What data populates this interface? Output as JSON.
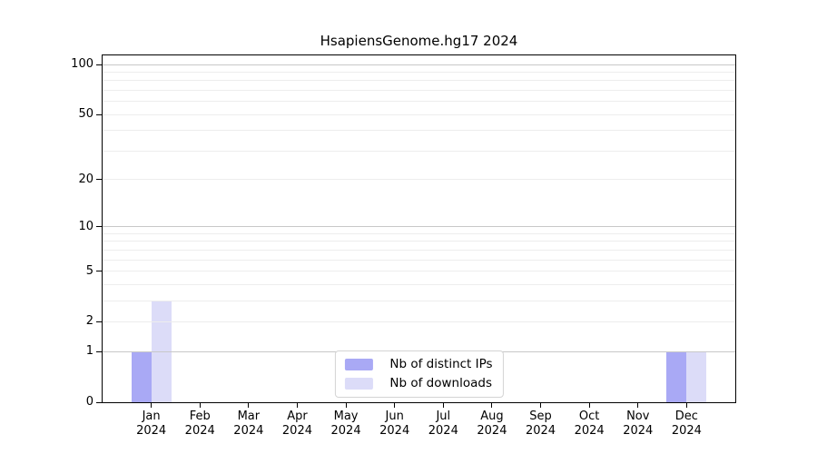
{
  "chart_data": {
    "type": "bar",
    "title": "HsapiensGenome.hg17 2024",
    "x_labels": [
      {
        "month": "Jan",
        "year": "2024"
      },
      {
        "month": "Feb",
        "year": "2024"
      },
      {
        "month": "Mar",
        "year": "2024"
      },
      {
        "month": "Apr",
        "year": "2024"
      },
      {
        "month": "May",
        "year": "2024"
      },
      {
        "month": "Jun",
        "year": "2024"
      },
      {
        "month": "Jul",
        "year": "2024"
      },
      {
        "month": "Aug",
        "year": "2024"
      },
      {
        "month": "Sep",
        "year": "2024"
      },
      {
        "month": "Oct",
        "year": "2024"
      },
      {
        "month": "Nov",
        "year": "2024"
      },
      {
        "month": "Dec",
        "year": "2024"
      }
    ],
    "series": [
      {
        "name": "Nb of distinct IPs",
        "color": "#a9a9f5",
        "values": [
          1,
          0,
          0,
          0,
          0,
          0,
          0,
          0,
          0,
          0,
          0,
          1
        ]
      },
      {
        "name": "Nb of downloads",
        "color": "#dcdcf8",
        "values": [
          3,
          0,
          0,
          0,
          0,
          0,
          0,
          0,
          0,
          0,
          0,
          1
        ]
      }
    ],
    "ylabel": "",
    "xlabel": "",
    "ylim": [
      0,
      100
    ],
    "y_scale": "log10(value+1)",
    "y_ticks": [
      0,
      1,
      2,
      5,
      10,
      20,
      50,
      100
    ],
    "grid_minor": [
      2,
      3,
      4,
      5,
      6,
      7,
      8,
      9,
      20,
      30,
      40,
      50,
      60,
      70,
      80,
      90
    ],
    "grid_major": [
      1,
      10,
      100
    ],
    "legend_position": "bottom-center",
    "colors": {
      "axis": "#000000",
      "grid_minor": "#ededed",
      "grid_major": "#c8c8c8",
      "background": "#ffffff"
    }
  }
}
